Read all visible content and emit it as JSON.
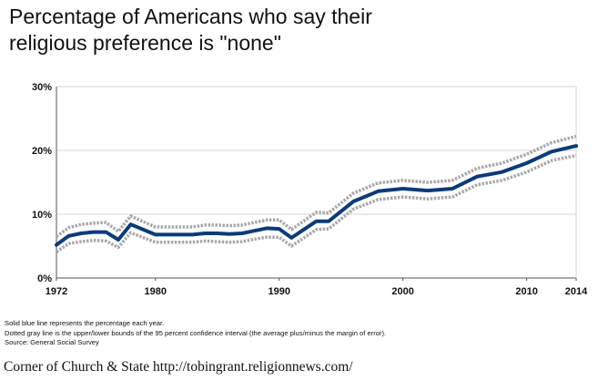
{
  "title_lines": [
    "Percentage of Americans who say their",
    "religious preference is \"none\""
  ],
  "notes": [
    "Solid blue line represents the percentage each year.",
    "Dotted gray line is the upper/lower bounds of the 95 percent confidence interval (the average plus/minus the margin of error).",
    "Source: General Social Survey"
  ],
  "credit": "Corner of Church & State http://tobingrant.religionnews.com/",
  "colors": {
    "line": "#0b3b78",
    "ci": "#a8a8a8",
    "grid": "#d6d6d6",
    "axis": "#555555"
  },
  "chart_data": {
    "type": "line",
    "title": "Percentage of Americans who say their religious preference is \"none\"",
    "xlim": [
      1972,
      2014
    ],
    "ylim": [
      0,
      30
    ],
    "x_ticks": [
      1972,
      1980,
      1990,
      2000,
      2010,
      2014
    ],
    "y_ticks": [
      {
        "value": 0,
        "label": "0%"
      },
      {
        "value": 10,
        "label": "10%"
      },
      {
        "value": 20,
        "label": "20%"
      },
      {
        "value": 30,
        "label": "30%"
      }
    ],
    "grid": "horizontal",
    "x": [
      1972,
      1973,
      1974,
      1975,
      1976,
      1977,
      1978,
      1980,
      1982,
      1983,
      1984,
      1985,
      1986,
      1987,
      1988,
      1989,
      1990,
      1991,
      1993,
      1994,
      1996,
      1998,
      2000,
      2002,
      2004,
      2006,
      2008,
      2010,
      2012,
      2014
    ],
    "series": [
      {
        "role": "estimate",
        "style": "solid",
        "values": [
          5.2,
          6.6,
          7.0,
          7.2,
          7.2,
          6.0,
          8.4,
          6.8,
          6.8,
          6.8,
          7.0,
          7.0,
          6.9,
          7.0,
          7.4,
          7.8,
          7.7,
          6.3,
          8.9,
          8.9,
          12.0,
          13.6,
          14.0,
          13.7,
          14.0,
          15.9,
          16.6,
          18.0,
          19.8,
          20.7
        ]
      },
      {
        "role": "upper bound",
        "style": "dotted",
        "values": [
          6.5,
          7.9,
          8.4,
          8.6,
          8.7,
          7.3,
          9.7,
          8.0,
          8.0,
          8.0,
          8.3,
          8.3,
          8.2,
          8.3,
          8.7,
          9.1,
          9.1,
          7.6,
          10.3,
          10.2,
          13.3,
          14.9,
          15.3,
          15.0,
          15.3,
          17.2,
          18.0,
          19.4,
          21.2,
          22.2
        ]
      },
      {
        "role": "lower bound",
        "style": "dotted",
        "values": [
          4.1,
          5.4,
          5.7,
          5.9,
          5.8,
          4.8,
          7.1,
          5.6,
          5.6,
          5.6,
          5.8,
          5.7,
          5.6,
          5.7,
          6.1,
          6.4,
          6.4,
          5.0,
          7.6,
          7.7,
          10.8,
          12.3,
          12.7,
          12.4,
          12.7,
          14.6,
          15.3,
          16.6,
          18.4,
          19.2
        ]
      }
    ]
  }
}
